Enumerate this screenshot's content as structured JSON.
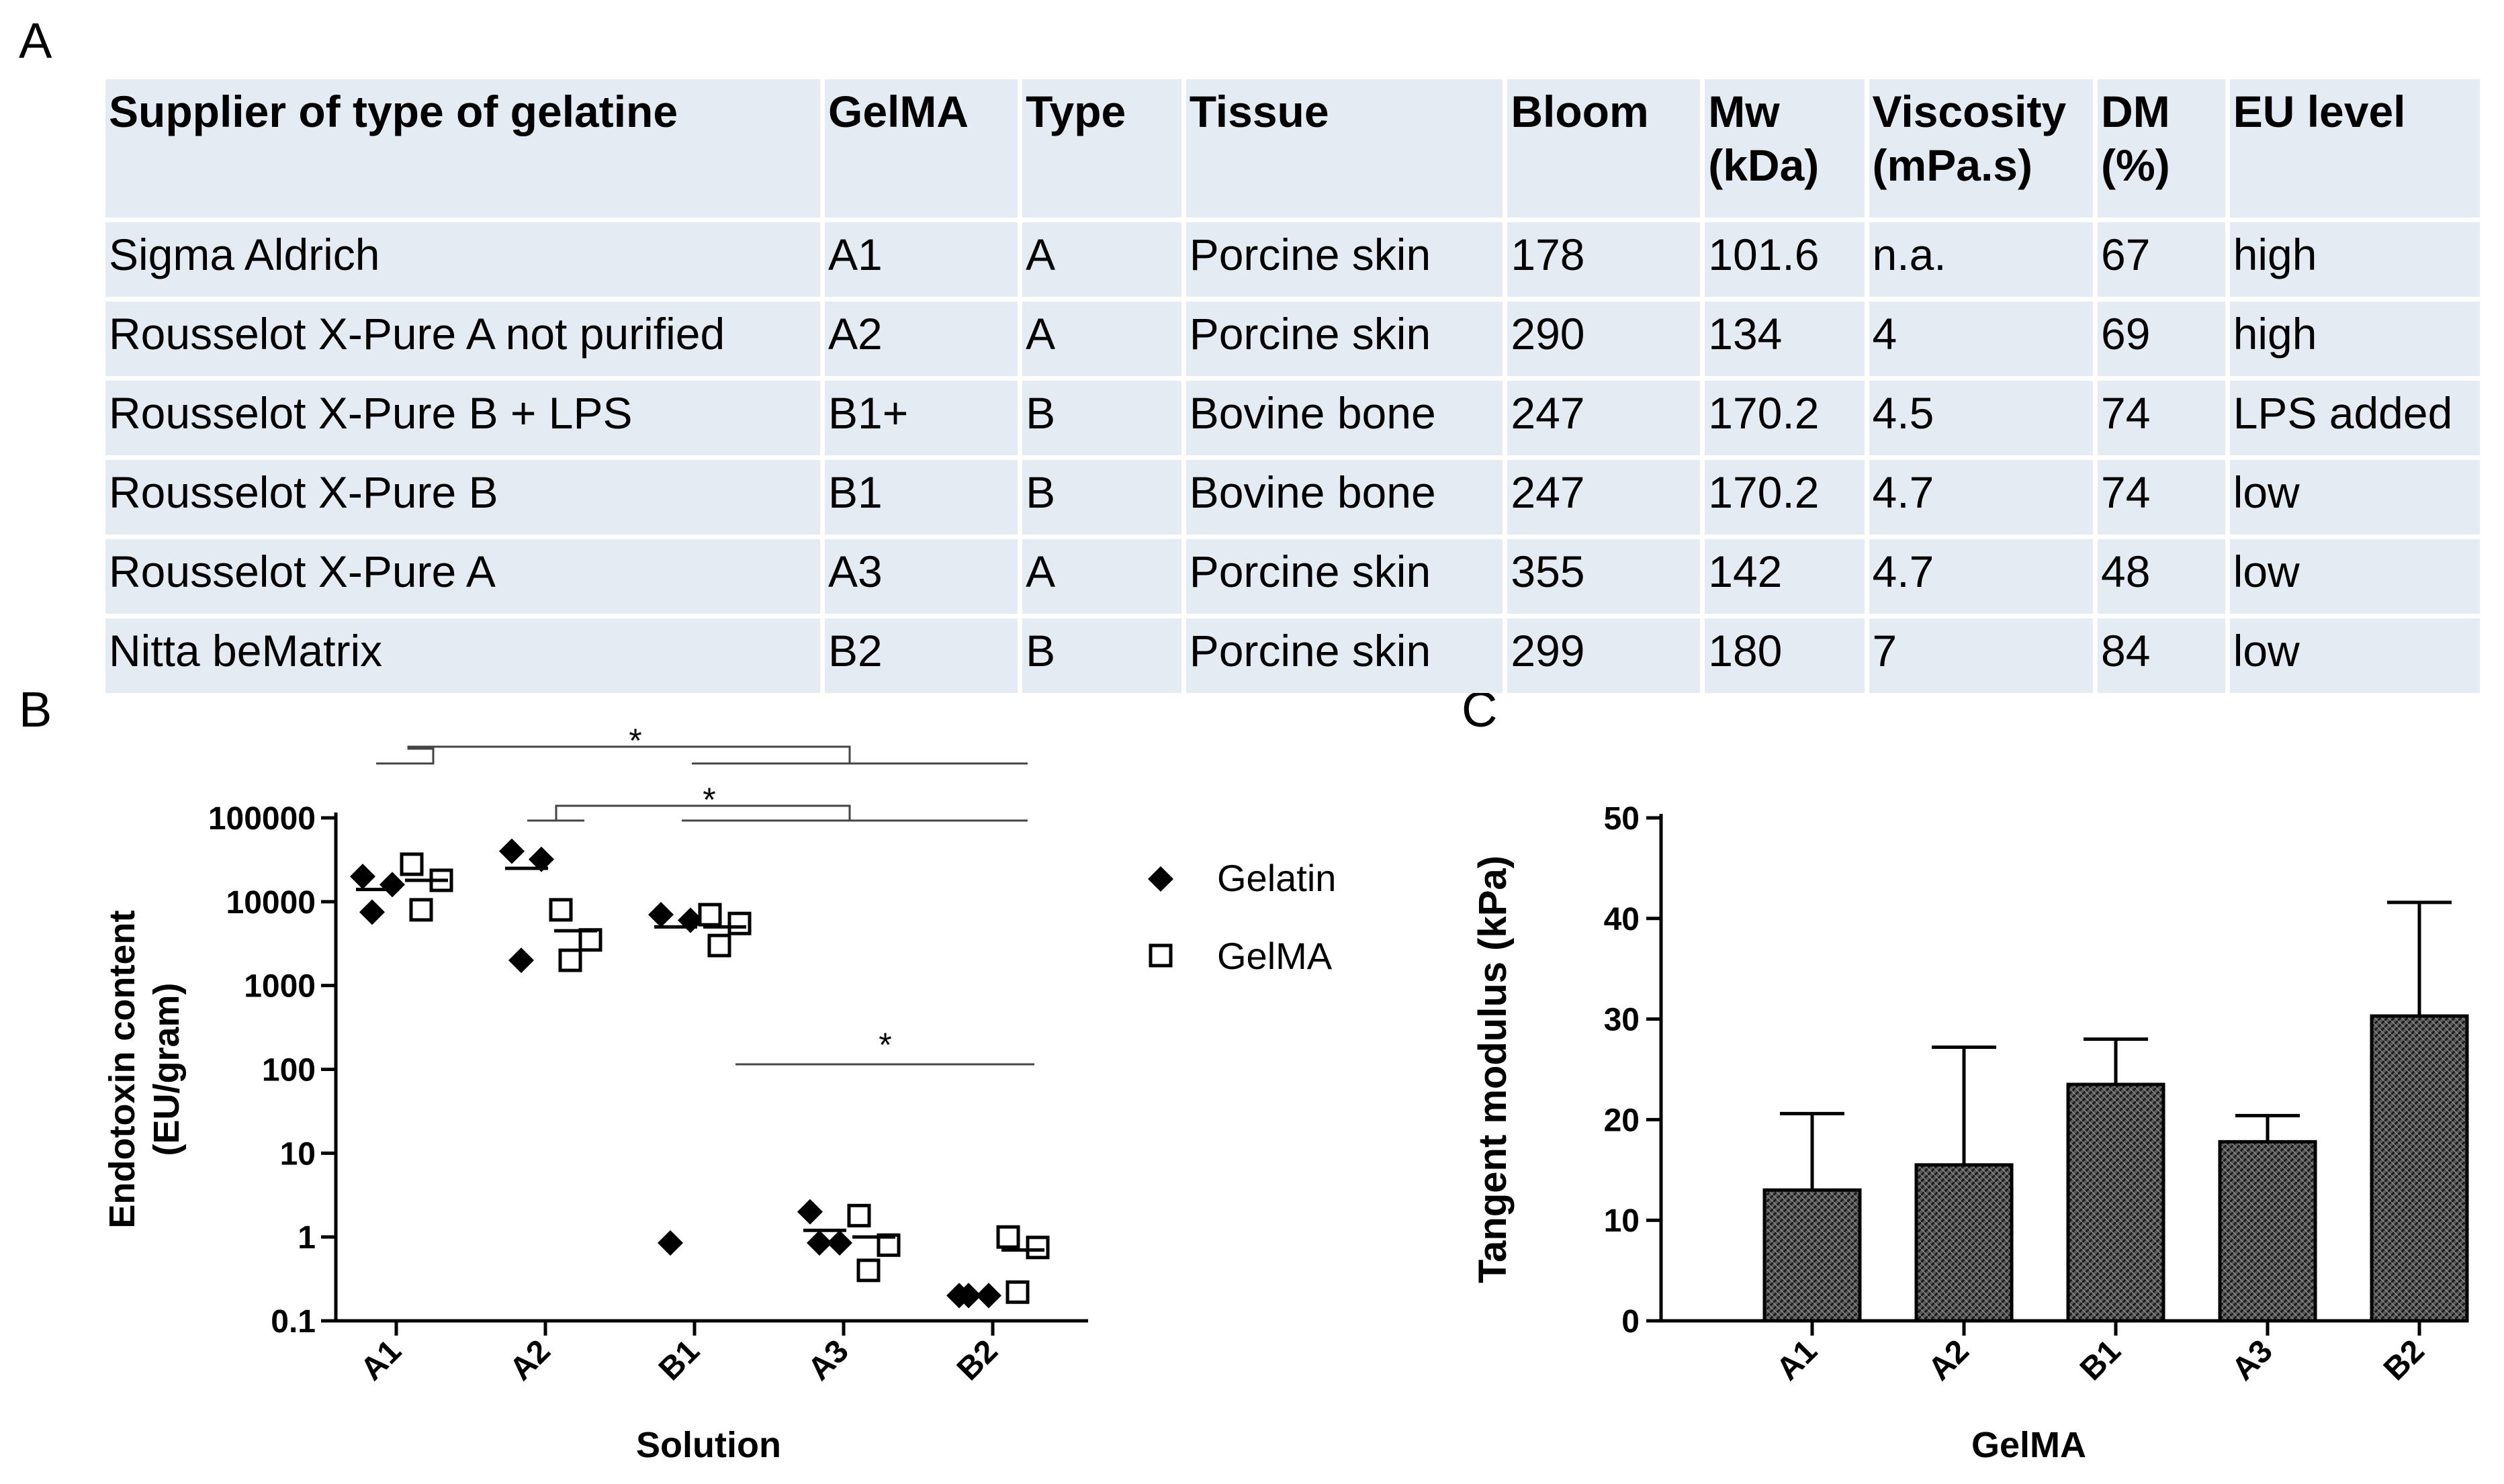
{
  "panels": {
    "a": "A",
    "b": "B",
    "c": "C"
  },
  "table": {
    "headers": [
      [
        "Supplier of type of gelatine"
      ],
      [
        "GelMA"
      ],
      [
        "Type"
      ],
      [
        "Tissue"
      ],
      [
        "Bloom"
      ],
      [
        "Mw",
        "(kDa)"
      ],
      [
        "Viscosity",
        "(mPa.s)"
      ],
      [
        "DM",
        "(%)"
      ],
      [
        "EU level"
      ]
    ],
    "rows": [
      [
        "Sigma Aldrich",
        "A1",
        "A",
        "Porcine skin",
        "178",
        "101.6",
        "n.a.",
        "67",
        "high"
      ],
      [
        "Rousselot X-Pure A not purified",
        "A2",
        "A",
        "Porcine skin",
        "290",
        "134",
        "4",
        "69",
        "high"
      ],
      [
        "Rousselot X-Pure B + LPS",
        "B1+",
        "B",
        "Bovine bone",
        "247",
        "170.2",
        "4.5",
        "74",
        "LPS added"
      ],
      [
        "Rousselot X-Pure B",
        "B1",
        "B",
        "Bovine bone",
        "247",
        "170.2",
        "4.7",
        "74",
        "low"
      ],
      [
        "Rousselot X-Pure A",
        "A3",
        "A",
        "Porcine skin",
        "355",
        "142",
        "4.7",
        "48",
        "low"
      ],
      [
        "Nitta beMatrix",
        "B2",
        "B",
        "Porcine skin",
        "299",
        "180",
        "7",
        "84",
        "low"
      ]
    ]
  },
  "chart_data": [
    {
      "type": "scatter",
      "ylabel": "Endotoxin content (EU/gram)",
      "ylabel_lines": [
        "Endotoxin content",
        "(EU/gram)"
      ],
      "xlabel": "Solution",
      "yscale": "log",
      "ylim": [
        0.1,
        100000
      ],
      "yticks": [
        0.1,
        1,
        10,
        100,
        1000,
        10000,
        100000
      ],
      "ytick_labels": [
        "0.1",
        "1",
        "10",
        "100",
        "1000",
        "10000",
        "100000"
      ],
      "categories": [
        "A1",
        "A2",
        "B1",
        "A3",
        "B2"
      ],
      "legend": [
        "Gelatin",
        "GelMA"
      ],
      "legend_position": "top-right",
      "series": [
        {
          "name": "Gelatin",
          "marker": "filled-diamond",
          "points": [
            [
              20000,
              16000,
              7500
            ],
            [
              40000,
              32000,
              2000
            ],
            [
              7000,
              6000,
              0.85
            ],
            [
              2,
              0.85,
              0.85
            ],
            [
              0.2,
              0.2,
              0.2
            ]
          ],
          "means": [
            14000,
            25000,
            5000,
            1.2,
            0.2
          ]
        },
        {
          "name": "GelMA",
          "marker": "open-square",
          "points": [
            [
              28000,
              18000,
              8000
            ],
            [
              8000,
              3500,
              2000
            ],
            [
              7000,
              5500,
              3000
            ],
            [
              1.8,
              0.8,
              0.4
            ],
            [
              1,
              0.75,
              0.22
            ]
          ],
          "means": [
            18000,
            4500,
            5000,
            1,
            0.7
          ]
        }
      ],
      "significance": [
        {
          "label": "*",
          "from_group": [
            "A1"
          ],
          "to_group": [
            "B1",
            "A3",
            "B2"
          ]
        },
        {
          "label": "*",
          "from_group": [
            "A2"
          ],
          "to_group": [
            "B1",
            "A3",
            "B2"
          ]
        },
        {
          "label": "*",
          "from_group": [
            "B1"
          ],
          "to_group": [
            "B2"
          ]
        }
      ]
    },
    {
      "type": "bar",
      "ylabel": "Tangent modulus (kPa)",
      "xlabel": "GelMA",
      "ylim": [
        0,
        50
      ],
      "yticks": [
        0,
        10,
        20,
        30,
        40,
        50
      ],
      "categories": [
        "A1",
        "A2",
        "B1",
        "A3",
        "B2"
      ],
      "values": [
        13,
        15.5,
        23.5,
        17.8,
        30.3
      ],
      "errors": [
        7.6,
        11.7,
        4.5,
        2.6,
        11.3
      ]
    }
  ]
}
